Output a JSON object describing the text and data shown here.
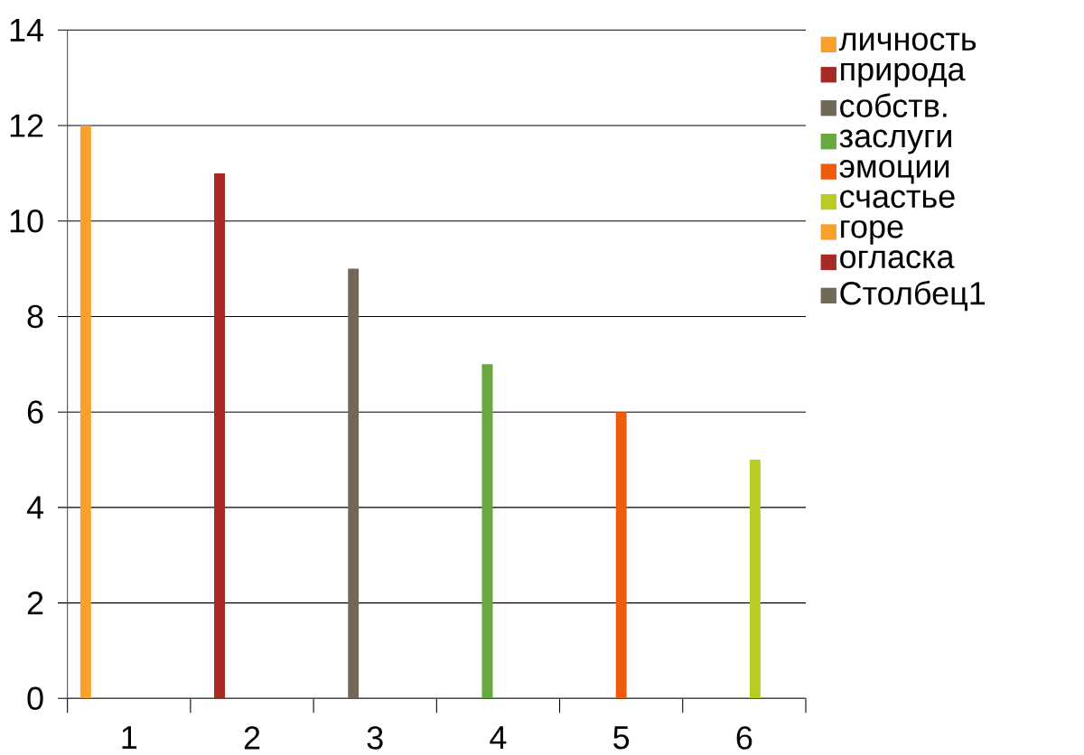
{
  "chart_data": {
    "type": "bar",
    "categories": [
      "1",
      "2",
      "3",
      "4",
      "5",
      "6"
    ],
    "series": [
      {
        "name": "личность",
        "color": "#f7a12c",
        "values": [
          12,
          null,
          null,
          null,
          null,
          null
        ]
      },
      {
        "name": "природа",
        "color": "#a82a26",
        "values": [
          null,
          11,
          null,
          null,
          null,
          null
        ]
      },
      {
        "name": "собств.",
        "color": "#726857",
        "values": [
          null,
          null,
          9,
          null,
          null,
          null
        ]
      },
      {
        "name": "заслуги",
        "color": "#69a83f",
        "values": [
          null,
          null,
          null,
          7,
          null,
          null
        ]
      },
      {
        "name": "эмоции",
        "color": "#f05a0a",
        "values": [
          null,
          null,
          null,
          null,
          6,
          null
        ]
      },
      {
        "name": "счастье",
        "color": "#b9cc22",
        "values": [
          null,
          null,
          null,
          null,
          null,
          5
        ]
      },
      {
        "name": "горе",
        "color": "#f7a12c",
        "values": [
          null,
          null,
          null,
          null,
          null,
          null
        ]
      },
      {
        "name": "огласка",
        "color": "#a82a26",
        "values": [
          null,
          null,
          null,
          null,
          null,
          null
        ]
      },
      {
        "name": "Столбец1",
        "color": "#726857",
        "values": [
          null,
          null,
          null,
          null,
          null,
          null
        ]
      }
    ],
    "ylim": [
      0,
      14
    ],
    "yticks": [
      0,
      2,
      4,
      6,
      8,
      10,
      12,
      14
    ],
    "grid": "y",
    "legend": "right"
  }
}
